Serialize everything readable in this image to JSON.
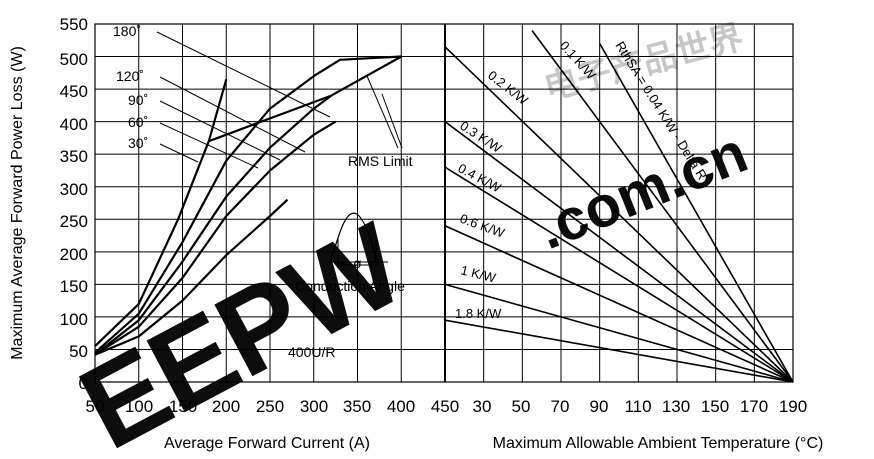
{
  "chart_data": [
    {
      "type": "line",
      "title": "",
      "xlabel": "Average Forward Current (A)",
      "ylabel": "Maximum Average Forward Power Loss (W)",
      "xlim": [
        50,
        450
      ],
      "ylim": [
        0,
        550
      ],
      "x_ticks": [
        "50",
        "100",
        "150",
        "200",
        "250",
        "300",
        "350",
        "400",
        "450"
      ],
      "y_ticks": [
        "0",
        "50",
        "100",
        "150",
        "200",
        "250",
        "300",
        "350",
        "400",
        "450",
        "500",
        "550"
      ],
      "grid": true,
      "series": [
        {
          "name": "180˚",
          "points": [
            [
              50,
              45
            ],
            [
              100,
              105
            ],
            [
              150,
              215
            ],
            [
              200,
              340
            ],
            [
              250,
              420
            ],
            [
              300,
              470
            ],
            [
              330,
              495
            ],
            [
              400,
              500
            ]
          ]
        },
        {
          "name": "120˚",
          "points": [
            [
              50,
              42
            ],
            [
              100,
              95
            ],
            [
              150,
              185
            ],
            [
              200,
              285
            ],
            [
              250,
              360
            ],
            [
              300,
              420
            ],
            [
              320,
              440
            ]
          ]
        },
        {
          "name": "90˚",
          "points": [
            [
              50,
              42
            ],
            [
              100,
              85
            ],
            [
              150,
              160
            ],
            [
              200,
              255
            ],
            [
              250,
              325
            ],
            [
              300,
              380
            ],
            [
              325,
              400
            ]
          ]
        },
        {
          "name": "60˚",
          "points": [
            [
              50,
              42
            ],
            [
              100,
              70
            ],
            [
              150,
              125
            ],
            [
              200,
              195
            ],
            [
              250,
              255
            ],
            [
              270,
              280
            ]
          ]
        },
        {
          "name": "30˚",
          "points": [
            [
              50,
              55
            ],
            [
              100,
              120
            ],
            [
              145,
              250
            ],
            [
              180,
              370
            ],
            [
              200,
              465
            ]
          ]
        },
        {
          "name": "RMS Limit",
          "points": [
            [
              180,
              370
            ],
            [
              260,
              410
            ],
            [
              320,
              440
            ],
            [
              400,
              500
            ]
          ]
        }
      ],
      "annotations": [
        "RMS Limit",
        "Conduction Angle",
        "ø",
        "400U/R"
      ]
    },
    {
      "type": "line",
      "title": "",
      "xlabel": "Maximum Allowable Ambient Temperature (°C)",
      "ylabel": "",
      "xlim": [
        10,
        190
      ],
      "x_ticks": [
        "30",
        "50",
        "70",
        "90",
        "110",
        "130",
        "150",
        "170",
        "190"
      ],
      "grid": true,
      "series": [
        {
          "name": "RthSA = 0.04 K/W - Delta R",
          "points": [
            [
              90,
              520
            ],
            [
              190,
              0
            ]
          ]
        },
        {
          "name": "0.1 K/W",
          "points": [
            [
              55,
              540
            ],
            [
              190,
              0
            ]
          ]
        },
        {
          "name": "0.2 K/W",
          "points": [
            [
              10,
              515
            ],
            [
              190,
              0
            ]
          ]
        },
        {
          "name": "0.3 K/W",
          "points": [
            [
              10,
              400
            ],
            [
              190,
              0
            ]
          ]
        },
        {
          "name": "0.4 K/W",
          "points": [
            [
              10,
              330
            ],
            [
              190,
              0
            ]
          ]
        },
        {
          "name": "0.6 K/W",
          "points": [
            [
              10,
              240
            ],
            [
              190,
              0
            ]
          ]
        },
        {
          "name": "1 K/W",
          "points": [
            [
              10,
              150
            ],
            [
              190,
              0
            ]
          ]
        },
        {
          "name": "1.8 K/W",
          "points": [
            [
              10,
              95
            ],
            [
              190,
              0
            ]
          ]
        }
      ]
    }
  ],
  "labels": {
    "ylabel": "Maximum Average Forward Power Loss (W)",
    "xlabel_left": "Average Forward Current (A)",
    "xlabel_right": "Maximum Allowable Ambient Temperature (°C)",
    "x_left": [
      "50",
      "100",
      "150",
      "200",
      "250",
      "300",
      "350",
      "400",
      "450"
    ],
    "x_right": [
      "30",
      "50",
      "70",
      "90",
      "110",
      "130",
      "150",
      "170",
      "190"
    ],
    "y": [
      "550",
      "500",
      "450",
      "400",
      "350",
      "300",
      "250",
      "200",
      "150",
      "100",
      "50",
      "0"
    ],
    "angles": [
      "180˚",
      "120˚",
      "90˚",
      "60˚",
      "30˚"
    ],
    "rms_limit": "RMS Limit",
    "conduction_angle": "Conduction Angle",
    "phi": "ø",
    "note": "400U/R",
    "rth": [
      "RthSA = 0.04 K/W - Delta R",
      "0.1 K/W",
      "0.2 K/W",
      "0.3 K/W",
      "0.4 K/W",
      "0.6 K/W",
      "1 K/W",
      "1.8 K/W"
    ]
  },
  "watermark": {
    "brand": "EEPW",
    "domain": ".com.cn",
    "cjk": "电子产品世界",
    "color": "#e8000a"
  }
}
